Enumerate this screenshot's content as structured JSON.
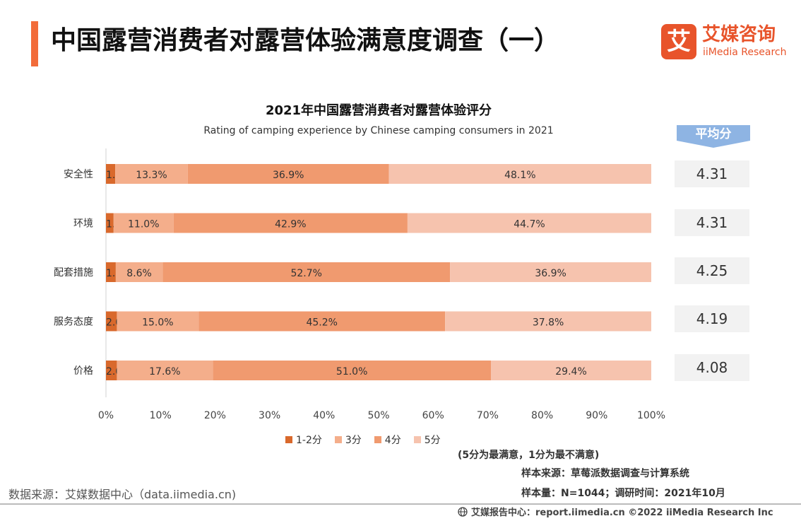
{
  "header": {
    "title": "中国露营消费者对露营体验满意度调查（一）",
    "logo_mark": "艾",
    "logo_cn": "艾媒咨询",
    "logo_en": "iiMedia Research"
  },
  "colors": {
    "accent": "#F26C3A",
    "score_1_2": "#D9692C",
    "score_3": "#F4AE8B",
    "score_4": "#F09A6F",
    "score_5": "#F6C3AE",
    "avg_header": "#8EB4E3"
  },
  "avg_header": "平均分",
  "chart_data": {
    "type": "bar",
    "orientation": "horizontal",
    "stacked": true,
    "title": "2021年中国露营消费者对露营体验评分",
    "subtitle": "Rating of camping experience by Chinese camping consumers in 2021",
    "categories": [
      "安全性",
      "环境",
      "配套措施",
      "服务态度",
      "价格"
    ],
    "series": [
      {
        "name": "1-2分",
        "values": [
          1.7,
          1.4,
          1.8,
          2.0,
          2.0
        ]
      },
      {
        "name": "3分",
        "values": [
          13.3,
          11.0,
          8.6,
          15.0,
          17.6
        ]
      },
      {
        "name": "4分",
        "values": [
          36.9,
          42.9,
          52.7,
          45.2,
          51.0
        ]
      },
      {
        "name": "5分",
        "values": [
          48.1,
          44.7,
          36.9,
          37.8,
          29.4
        ]
      }
    ],
    "averages": [
      "4.31",
      "4.31",
      "4.25",
      "4.19",
      "4.08"
    ],
    "xlim": [
      0,
      100
    ],
    "xticks": [
      "0%",
      "10%",
      "20%",
      "30%",
      "40%",
      "50%",
      "60%",
      "70%",
      "80%",
      "90%",
      "100%"
    ],
    "legend_position": "bottom",
    "grid": false
  },
  "notes": {
    "scale_note": "(5分为最满意，1分为最不满意)",
    "sample_source": "样本来源：草莓派数据调查与计算系统",
    "sample_size": "样本量：N=1044；调研时间：2021年10月"
  },
  "footer": {
    "data_source": "数据来源：艾媒数据中心（data.iimedia.cn)",
    "report_center": "艾媒报告中心：report.iimedia.cn ©2022 iiMedia Research Inc"
  }
}
